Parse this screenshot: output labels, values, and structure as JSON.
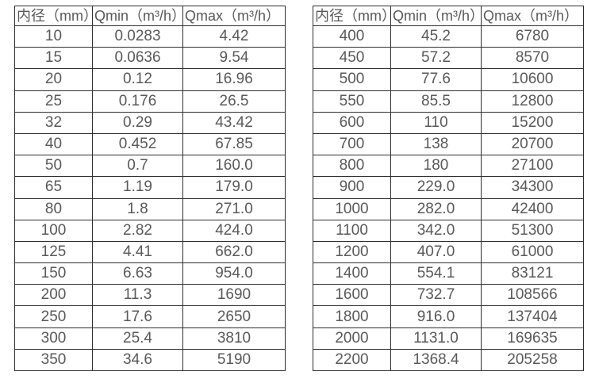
{
  "tables": [
    {
      "name": "flow-table-small-diameters",
      "headers": [
        "内径（mm）",
        "Qmin（m³/h）",
        "Qmax（m³/h）"
      ],
      "rows": [
        [
          "10",
          "0.0283",
          "4.42"
        ],
        [
          "15",
          "0.0636",
          "9.54"
        ],
        [
          "20",
          "0.12",
          "16.96"
        ],
        [
          "25",
          "0.176",
          "26.5"
        ],
        [
          "32",
          "0.29",
          "43.42"
        ],
        [
          "40",
          "0.452",
          "67.85"
        ],
        [
          "50",
          "0.7",
          "160.0"
        ],
        [
          "65",
          "1.19",
          "179.0"
        ],
        [
          "80",
          "1.8",
          "271.0"
        ],
        [
          "100",
          "2.82",
          "424.0"
        ],
        [
          "125",
          "4.41",
          "662.0"
        ],
        [
          "150",
          "6.63",
          "954.0"
        ],
        [
          "200",
          "11.3",
          "1690"
        ],
        [
          "250",
          "17.6",
          "2650"
        ],
        [
          "300",
          "25.4",
          "3810"
        ],
        [
          "350",
          "34.6",
          "5190"
        ]
      ]
    },
    {
      "name": "flow-table-large-diameters",
      "headers": [
        "内径（mm）",
        "Qmin（m³/h）",
        "Qmax（m³/h）"
      ],
      "rows": [
        [
          "400",
          "45.2",
          "6780"
        ],
        [
          "450",
          "57.2",
          "8570"
        ],
        [
          "500",
          "77.6",
          "10600"
        ],
        [
          "550",
          "85.5",
          "12800"
        ],
        [
          "600",
          "110",
          "15200"
        ],
        [
          "700",
          "138",
          "20700"
        ],
        [
          "800",
          "180",
          "27100"
        ],
        [
          "900",
          "229.0",
          "34300"
        ],
        [
          "1000",
          "282.0",
          "42400"
        ],
        [
          "1100",
          "342.0",
          "51300"
        ],
        [
          "1200",
          "407.0",
          "61000"
        ],
        [
          "1400",
          "554.1",
          "83121"
        ],
        [
          "1600",
          "732.7",
          "108566"
        ],
        [
          "1800",
          "916.0",
          "137404"
        ],
        [
          "2000",
          "1131.0",
          "169635"
        ],
        [
          "2200",
          "1368.4",
          "205258"
        ]
      ]
    }
  ],
  "colors": {
    "border": "#2f2f2f",
    "text": "#595959",
    "background": "#ffffff"
  }
}
